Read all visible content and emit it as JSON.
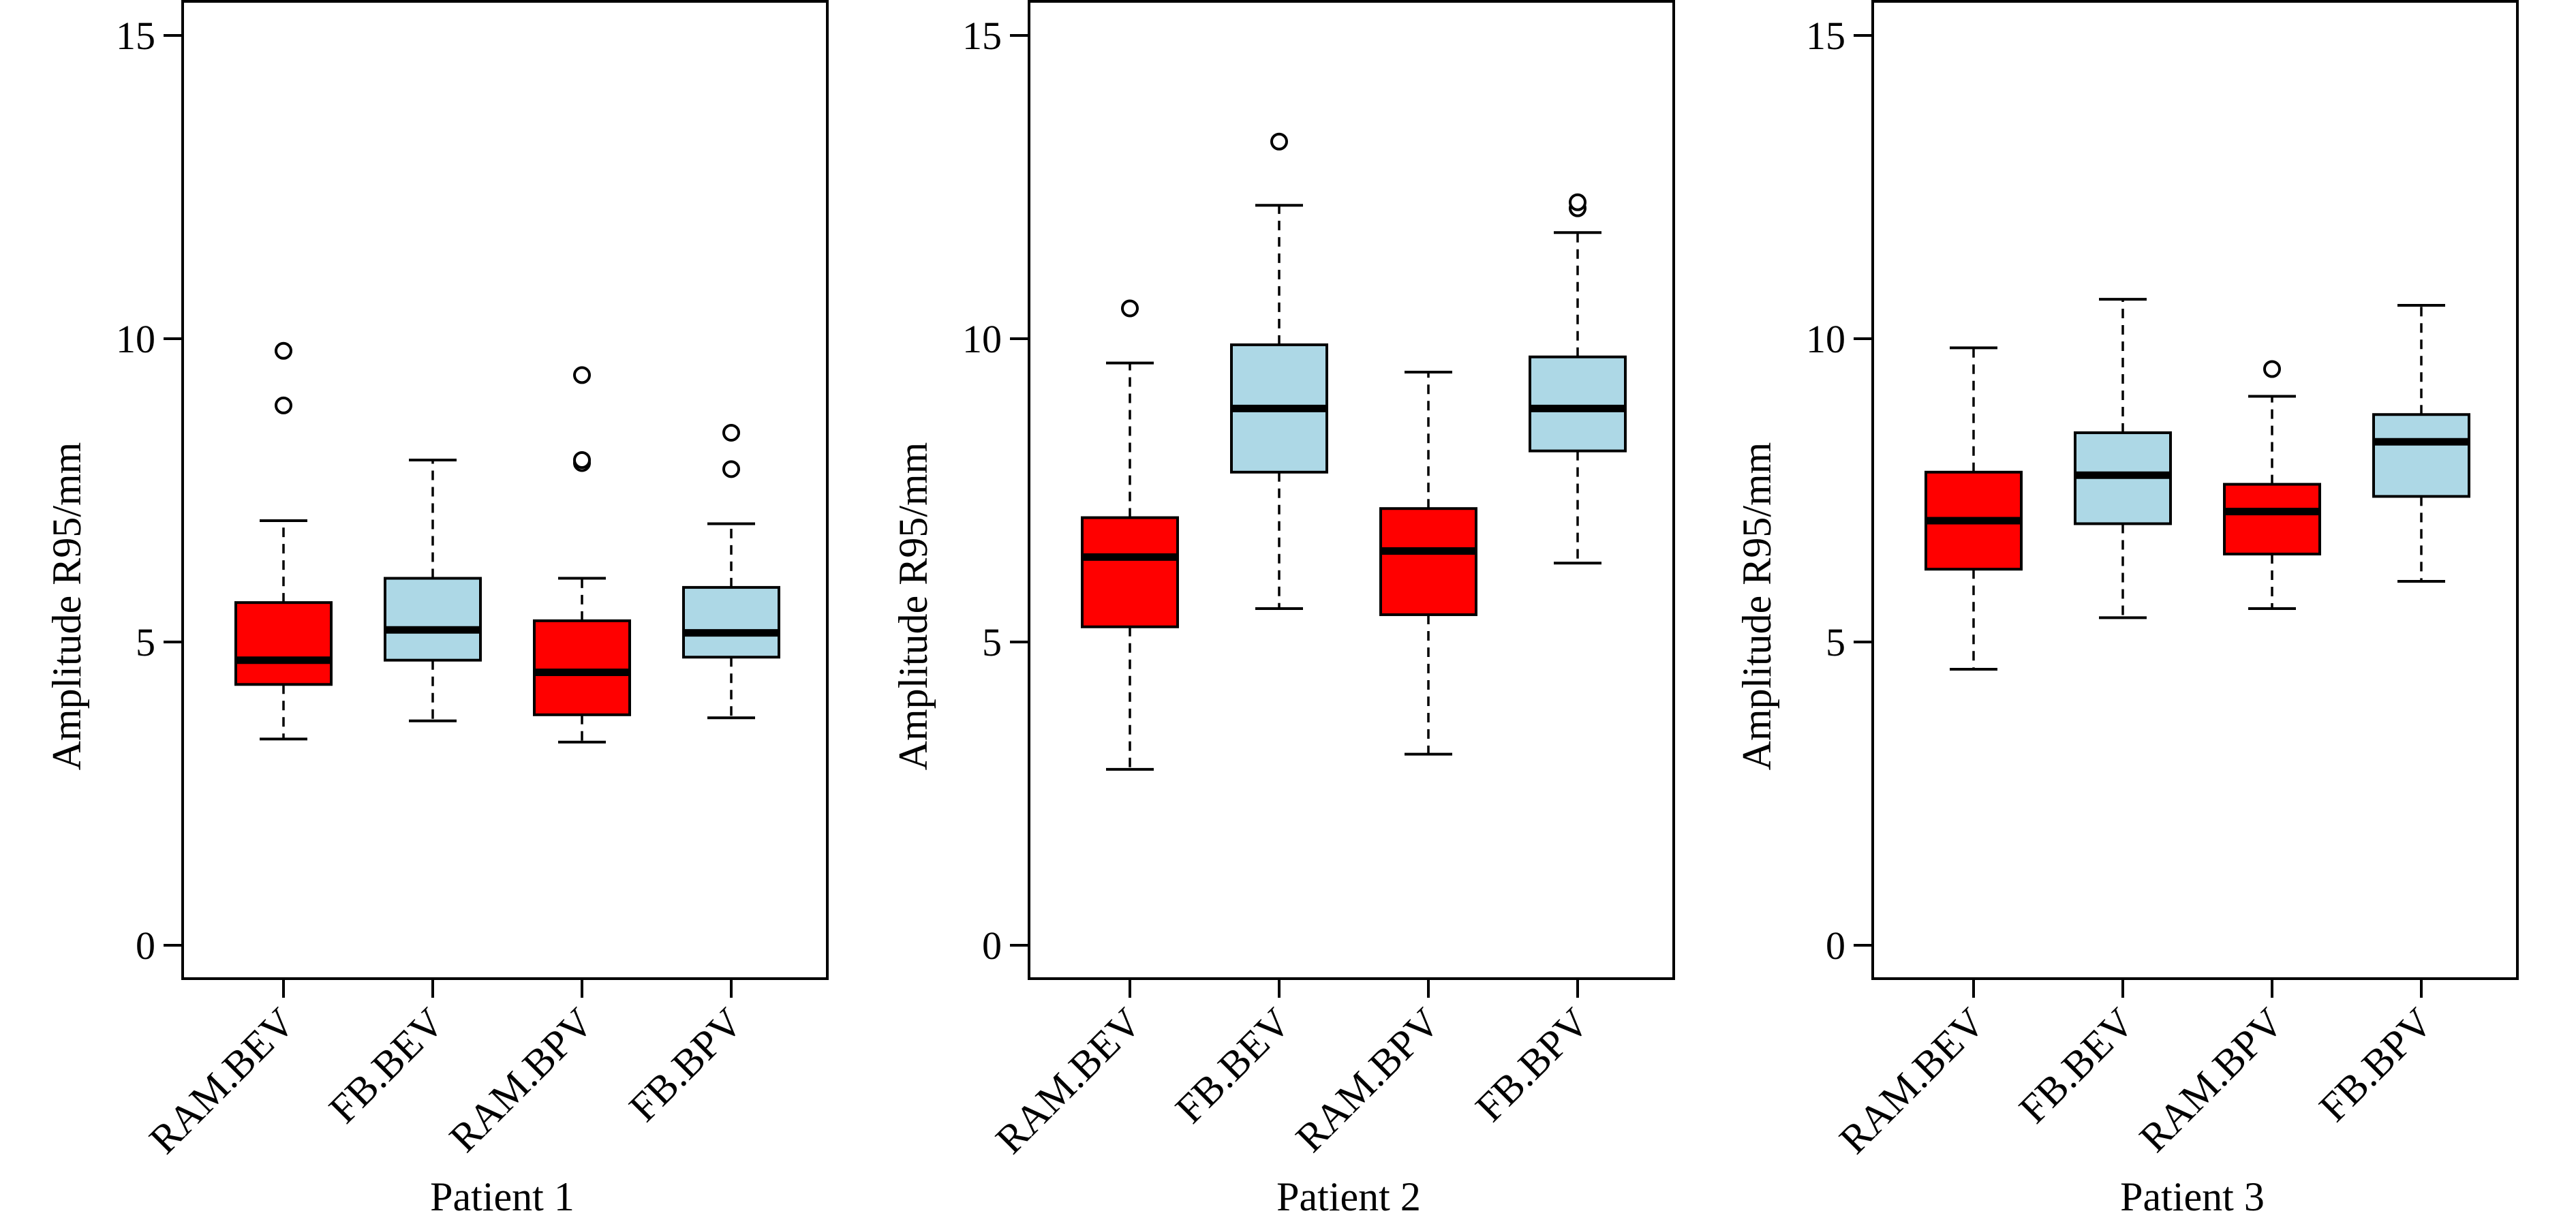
{
  "chart_data": [
    {
      "type": "box",
      "xlabel": "Patient 1",
      "ylabel": "Amplitude R95/mm",
      "ylim": [
        0,
        15
      ],
      "yticks": [
        0,
        5,
        10,
        15
      ],
      "categories": [
        "RAM.BEV",
        "FB.BEV",
        "RAM.BPV",
        "FB.BPV"
      ],
      "boxes": [
        {
          "category": "RAM.BEV",
          "color": "#ff0000",
          "whisker_low": 3.4,
          "q1": 4.3,
          "median": 4.7,
          "q3": 5.65,
          "whisker_high": 7.0,
          "outliers": [
            8.9,
            9.8
          ]
        },
        {
          "category": "FB.BEV",
          "color": "#add8e6",
          "whisker_low": 3.7,
          "q1": 4.7,
          "median": 5.2,
          "q3": 6.05,
          "whisker_high": 8.0,
          "outliers": []
        },
        {
          "category": "RAM.BPV",
          "color": "#ff0000",
          "whisker_low": 3.35,
          "q1": 3.8,
          "median": 4.5,
          "q3": 5.35,
          "whisker_high": 6.05,
          "outliers": [
            7.95,
            8.0,
            9.4
          ]
        },
        {
          "category": "FB.BPV",
          "color": "#add8e6",
          "whisker_low": 3.75,
          "q1": 4.75,
          "median": 5.15,
          "q3": 5.9,
          "whisker_high": 6.95,
          "outliers": [
            7.85,
            8.45
          ]
        }
      ]
    },
    {
      "type": "box",
      "xlabel": "Patient 2",
      "ylabel": "Amplitude R95/mm",
      "ylim": [
        0,
        15
      ],
      "yticks": [
        0,
        5,
        10,
        15
      ],
      "categories": [
        "RAM.BEV",
        "FB.BEV",
        "RAM.BPV",
        "FB.BPV"
      ],
      "boxes": [
        {
          "category": "RAM.BEV",
          "color": "#ff0000",
          "whisker_low": 2.9,
          "q1": 5.25,
          "median": 6.4,
          "q3": 7.05,
          "whisker_high": 9.6,
          "outliers": [
            10.5
          ]
        },
        {
          "category": "FB.BEV",
          "color": "#add8e6",
          "whisker_low": 5.55,
          "q1": 7.8,
          "median": 8.85,
          "q3": 9.9,
          "whisker_high": 12.2,
          "outliers": [
            13.25
          ]
        },
        {
          "category": "RAM.BPV",
          "color": "#ff0000",
          "whisker_low": 3.15,
          "q1": 5.45,
          "median": 6.5,
          "q3": 7.2,
          "whisker_high": 9.45,
          "outliers": []
        },
        {
          "category": "FB.BPV",
          "color": "#add8e6",
          "whisker_low": 6.3,
          "q1": 8.15,
          "median": 8.85,
          "q3": 9.7,
          "whisker_high": 11.75,
          "outliers": [
            12.15,
            12.25
          ]
        }
      ]
    },
    {
      "type": "box",
      "xlabel": "Patient 3",
      "ylabel": "Amplitude R95/mm",
      "ylim": [
        0,
        15
      ],
      "yticks": [
        0,
        5,
        10,
        15
      ],
      "categories": [
        "RAM.BEV",
        "FB.BEV",
        "RAM.BPV",
        "FB.BPV"
      ],
      "boxes": [
        {
          "category": "RAM.BEV",
          "color": "#ff0000",
          "whisker_low": 4.55,
          "q1": 6.2,
          "median": 7.0,
          "q3": 7.8,
          "whisker_high": 9.85,
          "outliers": []
        },
        {
          "category": "FB.BEV",
          "color": "#add8e6",
          "whisker_low": 5.4,
          "q1": 6.95,
          "median": 7.75,
          "q3": 8.45,
          "whisker_high": 10.65,
          "outliers": []
        },
        {
          "category": "RAM.BPV",
          "color": "#ff0000",
          "whisker_low": 5.55,
          "q1": 6.45,
          "median": 7.15,
          "q3": 7.6,
          "whisker_high": 9.05,
          "outliers": [
            9.5
          ]
        },
        {
          "category": "FB.BPV",
          "color": "#add8e6",
          "whisker_low": 6.0,
          "q1": 7.4,
          "median": 8.3,
          "q3": 8.75,
          "whisker_high": 10.55,
          "outliers": []
        }
      ]
    }
  ]
}
